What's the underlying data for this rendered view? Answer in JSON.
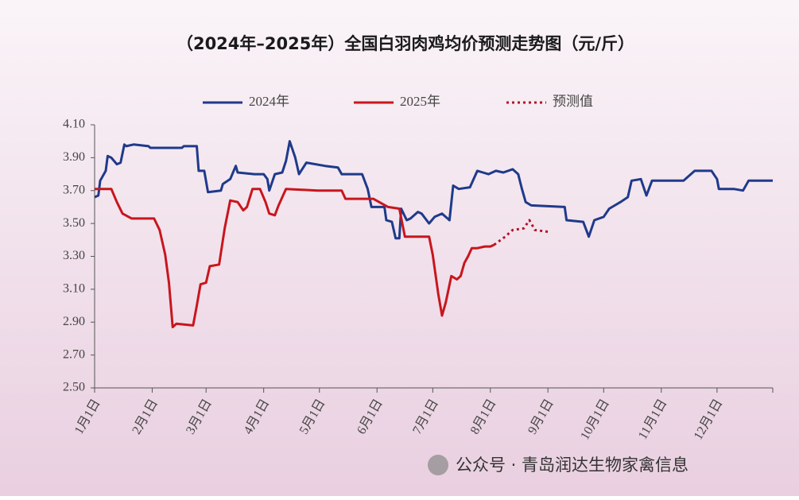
{
  "chart_data": {
    "type": "line",
    "title": "（2024年–2025年）全国白羽肉鸡均价预测走势图（元/斤）",
    "watermark": "公众号 · 青岛润达生物家禽信息",
    "xlim": [
      0,
      365
    ],
    "xticks": [
      {
        "value": 0,
        "label": "1月1日"
      },
      {
        "value": 31,
        "label": "2月1日"
      },
      {
        "value": 60,
        "label": "3月1日"
      },
      {
        "value": 91,
        "label": "4月1日"
      },
      {
        "value": 121,
        "label": "5月1日"
      },
      {
        "value": 152,
        "label": "6月1日"
      },
      {
        "value": 182,
        "label": "7月1日"
      },
      {
        "value": 213,
        "label": "8月1日"
      },
      {
        "value": 244,
        "label": "9月1日"
      },
      {
        "value": 274,
        "label": "10月1日"
      },
      {
        "value": 305,
        "label": "11月1日"
      },
      {
        "value": 335,
        "label": "12月1日"
      }
    ],
    "ylim": [
      2.5,
      4.1
    ],
    "yticks": [
      {
        "value": 2.5,
        "label": "2.50"
      },
      {
        "value": 2.7,
        "label": "2.70"
      },
      {
        "value": 2.9,
        "label": "2.90"
      },
      {
        "value": 3.1,
        "label": "3.10"
      },
      {
        "value": 3.3,
        "label": "3.30"
      },
      {
        "value": 3.5,
        "label": "3.50"
      },
      {
        "value": 3.7,
        "label": "3.70"
      },
      {
        "value": 3.9,
        "label": "3.90"
      },
      {
        "value": 4.1,
        "label": "4.10"
      }
    ],
    "series": [
      {
        "name": "2024年",
        "color": "#1f3a8a",
        "line_style": "solid",
        "x": [
          0,
          2,
          3,
          6,
          7,
          9,
          12,
          14,
          16,
          17,
          21,
          29,
          30,
          47,
          48,
          55,
          56,
          59,
          61,
          68,
          69,
          73,
          76,
          77,
          86,
          91,
          93,
          94,
          97,
          101,
          103,
          105,
          108,
          110,
          114,
          124,
          131,
          133,
          144,
          147,
          149,
          156,
          157,
          160,
          162,
          164,
          165,
          168,
          170,
          174,
          176,
          180,
          183,
          187,
          191,
          193,
          196,
          202,
          206,
          209,
          212,
          216,
          220,
          225,
          228,
          230,
          232,
          235,
          253,
          254,
          263,
          266,
          269,
          274,
          277,
          283,
          287,
          289,
          294,
          297,
          300,
          317,
          323,
          332,
          335,
          336,
          344,
          349,
          352,
          365
        ],
        "values": [
          3.66,
          3.67,
          3.76,
          3.82,
          3.91,
          3.9,
          3.86,
          3.87,
          3.98,
          3.97,
          3.98,
          3.97,
          3.96,
          3.96,
          3.97,
          3.97,
          3.82,
          3.82,
          3.69,
          3.7,
          3.74,
          3.77,
          3.85,
          3.81,
          3.8,
          3.8,
          3.77,
          3.7,
          3.8,
          3.81,
          3.88,
          4.0,
          3.9,
          3.8,
          3.87,
          3.85,
          3.84,
          3.8,
          3.8,
          3.71,
          3.6,
          3.6,
          3.52,
          3.51,
          3.41,
          3.41,
          3.59,
          3.52,
          3.53,
          3.57,
          3.56,
          3.5,
          3.54,
          3.56,
          3.52,
          3.73,
          3.71,
          3.72,
          3.82,
          3.81,
          3.8,
          3.82,
          3.81,
          3.83,
          3.8,
          3.71,
          3.63,
          3.61,
          3.6,
          3.52,
          3.51,
          3.42,
          3.52,
          3.54,
          3.59,
          3.63,
          3.66,
          3.76,
          3.77,
          3.67,
          3.76,
          3.76,
          3.82,
          3.82,
          3.77,
          3.71,
          3.71,
          3.7,
          3.76,
          3.76
        ]
      },
      {
        "name": "2025年",
        "color": "#c8161d",
        "line_style": "solid",
        "x": [
          0,
          9,
          12,
          15,
          20,
          32,
          35,
          38,
          40,
          42,
          44,
          53,
          55,
          57,
          60,
          62,
          67,
          70,
          73,
          77,
          80,
          82,
          85,
          89,
          92,
          94,
          97,
          99,
          103,
          120,
          133,
          135,
          150,
          158,
          164,
          167,
          180,
          182,
          185,
          187,
          189,
          192,
          195,
          197,
          199,
          201,
          203,
          206,
          210,
          213,
          215
        ],
        "values": [
          3.71,
          3.71,
          3.63,
          3.56,
          3.53,
          3.53,
          3.46,
          3.31,
          3.14,
          2.87,
          2.89,
          2.88,
          3.0,
          3.13,
          3.14,
          3.24,
          3.25,
          3.47,
          3.64,
          3.63,
          3.58,
          3.6,
          3.71,
          3.71,
          3.63,
          3.56,
          3.55,
          3.61,
          3.71,
          3.7,
          3.7,
          3.65,
          3.65,
          3.6,
          3.59,
          3.42,
          3.42,
          3.31,
          3.07,
          2.94,
          3.02,
          3.18,
          3.16,
          3.18,
          3.26,
          3.3,
          3.35,
          3.35,
          3.36,
          3.36,
          3.37
        ]
      },
      {
        "name": "预测值",
        "color": "#b0162a",
        "line_style": "dotted",
        "x": [
          215,
          221,
          225,
          231,
          234,
          237,
          244
        ],
        "values": [
          3.37,
          3.42,
          3.46,
          3.47,
          3.52,
          3.46,
          3.45
        ]
      }
    ]
  }
}
